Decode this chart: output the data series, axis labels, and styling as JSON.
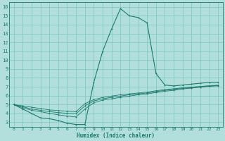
{
  "xlabel": "Humidex (Indice chaleur)",
  "bg_color": "#b2dfdb",
  "grid_color": "#78c8c0",
  "line_color": "#1a7a6e",
  "xlim": [
    -0.5,
    23.5
  ],
  "ylim": [
    2.5,
    16.5
  ],
  "xticks": [
    0,
    1,
    2,
    3,
    4,
    5,
    6,
    7,
    8,
    9,
    10,
    11,
    12,
    13,
    14,
    15,
    16,
    17,
    18,
    19,
    20,
    21,
    22,
    23
  ],
  "yticks": [
    3,
    4,
    5,
    6,
    7,
    8,
    9,
    10,
    11,
    12,
    13,
    14,
    15,
    16
  ],
  "lines": [
    [
      5.0,
      4.5,
      4.0,
      3.5,
      3.4,
      3.2,
      2.9,
      2.75,
      2.75,
      7.5,
      11.0,
      13.5,
      15.8,
      15.0,
      14.8,
      14.2,
      8.5,
      7.2,
      7.1,
      7.2,
      7.3,
      7.4,
      7.5,
      7.5
    ],
    [
      5.0,
      4.65,
      4.35,
      4.2,
      4.0,
      3.85,
      3.7,
      3.6,
      4.5,
      5.2,
      5.5,
      5.65,
      5.8,
      5.95,
      6.1,
      6.2,
      6.35,
      6.5,
      6.6,
      6.75,
      6.85,
      6.95,
      7.05,
      7.1
    ],
    [
      5.0,
      4.75,
      4.5,
      4.35,
      4.2,
      4.1,
      4.0,
      3.95,
      4.85,
      5.4,
      5.65,
      5.8,
      5.95,
      6.1,
      6.2,
      6.3,
      6.45,
      6.6,
      6.7,
      6.82,
      6.9,
      7.0,
      7.08,
      7.15
    ],
    [
      5.0,
      4.85,
      4.7,
      4.55,
      4.4,
      4.32,
      4.25,
      4.2,
      5.1,
      5.55,
      5.8,
      5.95,
      6.1,
      6.2,
      6.3,
      6.4,
      6.55,
      6.68,
      6.78,
      6.88,
      6.96,
      7.04,
      7.12,
      7.18
    ]
  ]
}
